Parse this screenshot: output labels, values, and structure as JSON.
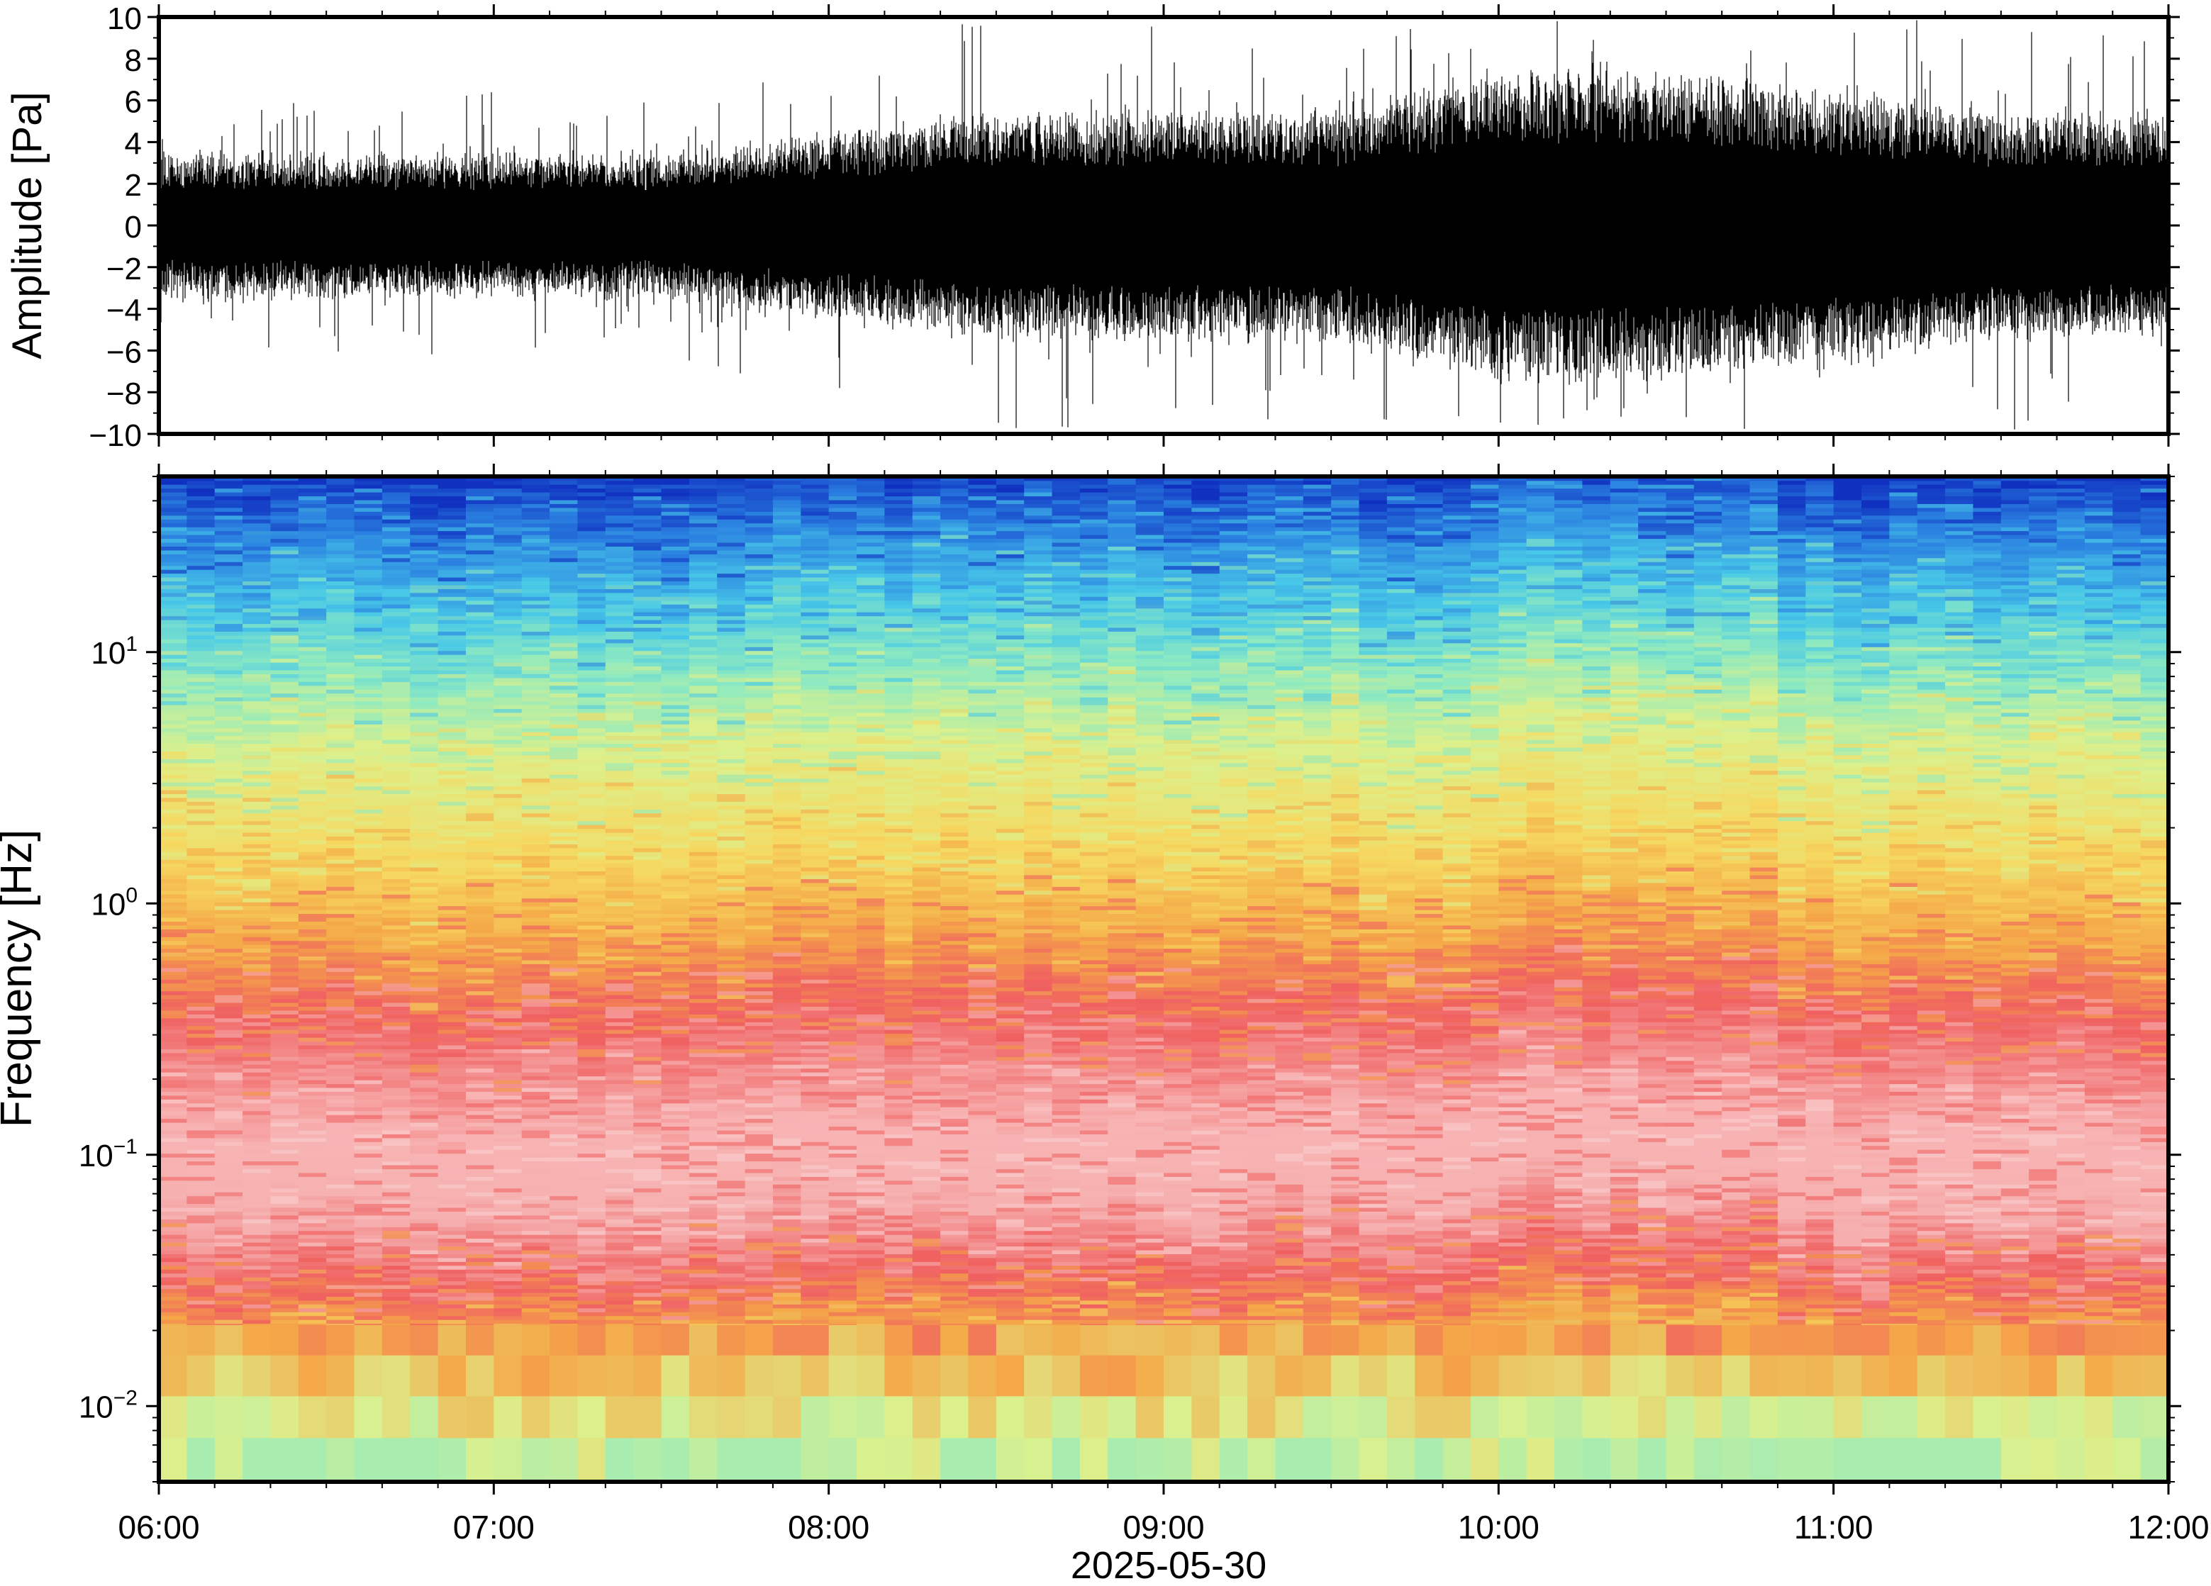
{
  "chart_data": [
    {
      "type": "line",
      "panel": "waveform",
      "title": "",
      "xlabel": "",
      "ylabel": "Amplitude [Pa]",
      "ylim": [
        -10,
        10
      ],
      "y_ticks": [
        10,
        8,
        6,
        4,
        2,
        0,
        -2,
        -4,
        -6,
        -8,
        -10
      ],
      "y_tick_labels": [
        "10",
        "8",
        "6",
        "4",
        "2",
        "0",
        "−2",
        "−4",
        "−6",
        "−8",
        "−10"
      ],
      "x_range": [
        "2025-05-30 06:00",
        "2025-05-30 12:00"
      ],
      "envelope": {
        "time": [
          "06:00",
          "06:30",
          "07:00",
          "07:30",
          "08:00",
          "08:30",
          "09:00",
          "09:30",
          "10:00",
          "10:30",
          "11:00",
          "11:30",
          "12:00"
        ],
        "typical_peak": [
          3,
          3,
          3,
          3,
          4,
          5,
          5,
          5,
          7,
          7,
          6,
          5,
          5
        ],
        "max_spike": [
          6,
          6,
          7,
          6,
          9,
          10,
          10,
          9,
          10,
          10,
          10,
          10,
          10
        ]
      },
      "grid": false
    },
    {
      "type": "heatmap",
      "panel": "spectrogram",
      "title": "",
      "xlabel": "2025-05-30",
      "ylabel": "Frequency [Hz]",
      "y_scale": "log",
      "ylim": [
        0.005,
        50
      ],
      "y_ticks": [
        0.01,
        0.1,
        1,
        10
      ],
      "y_tick_labels": [
        {
          "base": "10",
          "exp": "−2"
        },
        {
          "base": "10",
          "exp": "−1"
        },
        {
          "base": "10",
          "exp": "0"
        },
        {
          "base": "10",
          "exp": "1"
        }
      ],
      "x_ticks": [
        "06:00",
        "07:00",
        "08:00",
        "09:00",
        "10:00",
        "11:00",
        "12:00"
      ],
      "colormap": [
        "#1030c0",
        "#2a7fe0",
        "#48c8e8",
        "#8eeac0",
        "#dcf08c",
        "#f6d860",
        "#f5a848",
        "#f06060",
        "#f8b4b4",
        "#fbd0d0"
      ],
      "freq_color_profile": [
        {
          "freq": 50,
          "color": "#1030c0"
        },
        {
          "freq": 30,
          "color": "#2a7fe0"
        },
        {
          "freq": 15,
          "color": "#48c8e8"
        },
        {
          "freq": 8,
          "color": "#8eeac0"
        },
        {
          "freq": 4,
          "color": "#dcf08c"
        },
        {
          "freq": 1.5,
          "color": "#f6d860"
        },
        {
          "freq": 0.7,
          "color": "#f5a848"
        },
        {
          "freq": 0.35,
          "color": "#f06060"
        },
        {
          "freq": 0.12,
          "color": "#f8b4b4"
        },
        {
          "freq": 0.06,
          "color": "#f6b0b0"
        },
        {
          "freq": 0.03,
          "color": "#f06060"
        },
        {
          "freq": 0.018,
          "color": "#f5a848"
        },
        {
          "freq": 0.008,
          "color": "#dcf08c"
        },
        {
          "freq": 0.005,
          "color": "#a8ecb0"
        }
      ],
      "grid": false
    }
  ]
}
